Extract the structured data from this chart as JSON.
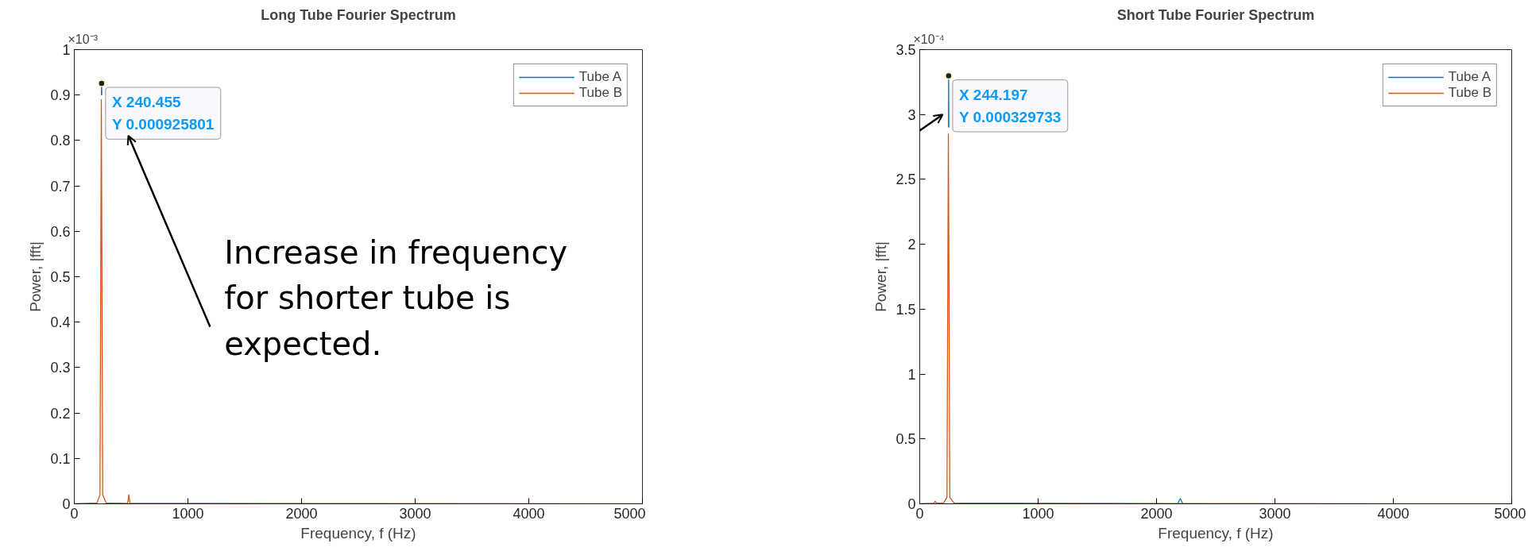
{
  "chart_data": [
    {
      "type": "line",
      "title": "Long Tube Fourier Spectrum",
      "xlabel": "Frequency, f (Hz)",
      "ylabel": "Power, |fft|",
      "xlim": [
        0,
        5000
      ],
      "xticks": [
        0,
        1000,
        2000,
        3000,
        4000,
        5000
      ],
      "ylim": [
        0,
        1
      ],
      "yticks": [
        0,
        0.1,
        0.2,
        0.3,
        0.4,
        0.5,
        0.6,
        0.7,
        0.8,
        0.9,
        1
      ],
      "legend": "top right",
      "grid": false,
      "series": [
        {
          "name": "Tube A",
          "color": "#0072bd",
          "x": [
            239,
            240.455,
            242
          ],
          "values": [
            0.9,
            0.925801,
            0.9
          ]
        },
        {
          "name": "Tube B",
          "color": "#d95319",
          "x": [
            0,
            200,
            226,
            238,
            250,
            280,
            470,
            480,
            490,
            5000
          ],
          "values": [
            0,
            0.002,
            0.02,
            0.89,
            0.02,
            0.002,
            0.001,
            0.02,
            0.001,
            0
          ]
        }
      ],
      "annotations": [
        "×10⁻³",
        {
          "text": "X 240.455\nY 0.000925801",
          "x": 240.455,
          "y": 0.925801
        },
        "Increase in frequency\nfor shorter tube is\nexpected."
      ]
    },
    {
      "type": "line",
      "title": "Short Tube Fourier Spectrum",
      "xlabel": "Frequency, f (Hz)",
      "ylabel": "Power, |fft|",
      "xlim": [
        0,
        5000
      ],
      "xticks": [
        0,
        1000,
        2000,
        3000,
        4000,
        5000
      ],
      "ylim": [
        0,
        3.5
      ],
      "yticks": [
        0,
        0.5,
        1,
        1.5,
        2,
        2.5,
        3,
        3.5
      ],
      "legend": "top right",
      "grid": false,
      "series": [
        {
          "name": "Tube A",
          "color": "#0072bd",
          "x": [
            243,
            244.197,
            245.5,
            null,
            2180,
            2200,
            2220
          ],
          "values": [
            2.9,
            3.29733,
            2.9,
            null,
            0.005,
            0.04,
            0.005
          ]
        },
        {
          "name": "Tube B",
          "color": "#d95319",
          "x": [
            0,
            120,
            130,
            140,
            200,
            230,
            242,
            254,
            290,
            5000
          ],
          "values": [
            0,
            0.005,
            0.02,
            0.005,
            0.005,
            0.05,
            2.85,
            0.05,
            0.005,
            0
          ]
        }
      ],
      "annotations": [
        "×10⁻⁴",
        {
          "text": "X 244.197\nY 0.000329733",
          "x": 244.197,
          "y": 3.29733
        }
      ]
    }
  ]
}
